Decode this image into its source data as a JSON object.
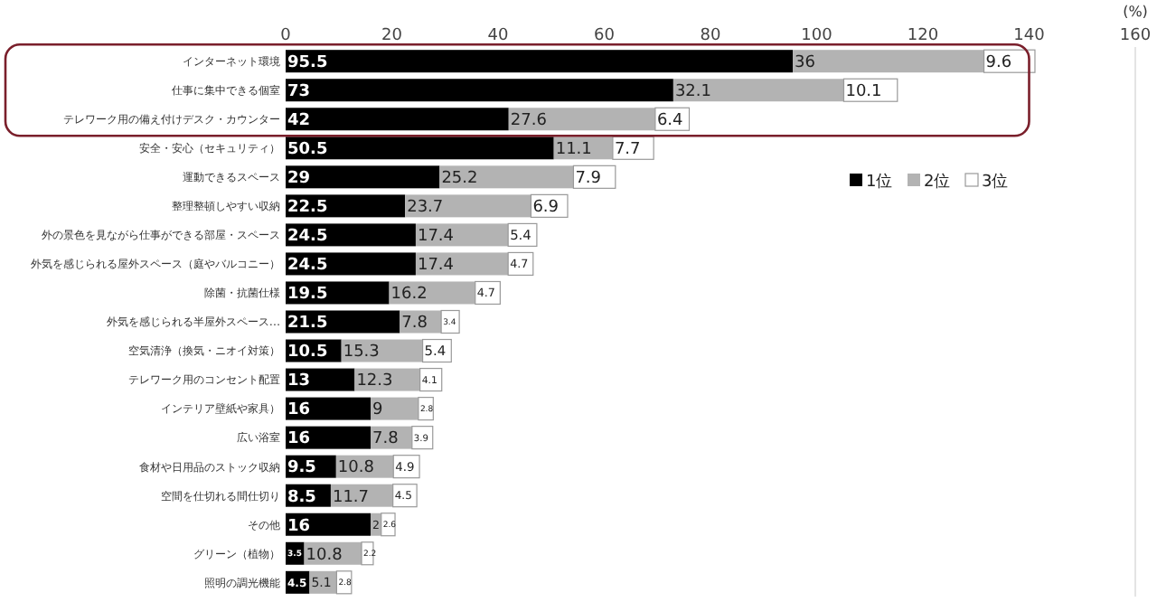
{
  "chart_data": {
    "type": "bar",
    "orientation": "horizontal",
    "stacked": true,
    "xlabel": "(%)",
    "categories": [
      "インターネット環境",
      "仕事に集中できる個室",
      "テレワーク用の備え付けデスク・カウンター",
      "安全・安心（セキュリティ）",
      "運動できるスペース",
      "整理整頓しやすい収納",
      "外の景色を見ながら仕事ができる部屋・スペース",
      "外気を感じられる屋外スペース（庭やバルコニー）",
      "除菌・抗菌仕様",
      "外気を感じられる半屋外スペース…",
      "空気清浄（換気・ニオイ対策）",
      "テレワーク用のコンセント配置",
      "インテリア壁紙や家具）",
      "広い浴室",
      "食材や日用品のストック収納",
      "空間を仕切れる間仕切り",
      "その他",
      "グリーン（植物）",
      "照明の調光機能"
    ],
    "series": [
      {
        "name": "1位",
        "color": "#000000",
        "values": [
          95.5,
          73,
          42,
          50.5,
          29,
          22.5,
          24.5,
          24.5,
          19.5,
          21.5,
          10.5,
          13,
          16,
          16,
          9.5,
          8.5,
          16,
          3.5,
          4.5
        ]
      },
      {
        "name": "2位",
        "color": "#b3b3b3",
        "values": [
          36,
          32.1,
          27.6,
          11.1,
          25.2,
          23.7,
          17.4,
          17.4,
          16.2,
          7.8,
          15.3,
          12.3,
          9,
          7.8,
          10.8,
          11.7,
          2,
          10.8,
          5.1
        ]
      },
      {
        "name": "3位",
        "color": "#ffffff",
        "values": [
          9.6,
          10.1,
          6.4,
          7.7,
          7.9,
          6.9,
          5.4,
          4.7,
          4.7,
          3.4,
          5.4,
          4.1,
          2.8,
          3.9,
          4.9,
          4.5,
          2.6,
          2.2,
          2.8
        ]
      }
    ],
    "xlim": [
      0,
      160
    ],
    "xticks": [
      0,
      20,
      40,
      60,
      80,
      100,
      120,
      140,
      160
    ],
    "data_labels": true,
    "legend": "right",
    "grid": false
  }
}
